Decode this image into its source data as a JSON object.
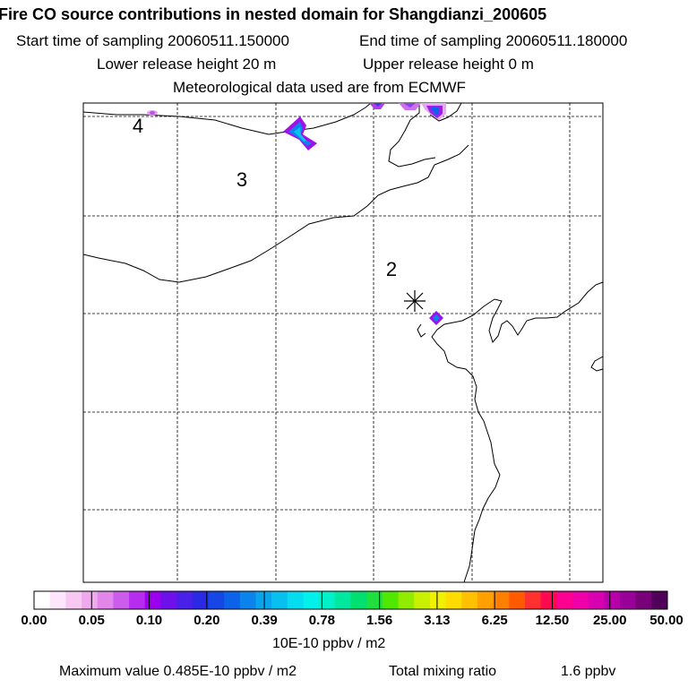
{
  "header": {
    "title": "Fire CO source contributions in nested domain for Shangdianzi_200605",
    "start_label": "Start time of sampling 20060511.150000",
    "end_label": "End time of sampling 20060511.180000",
    "lower_label": "Lower release height   20 m",
    "upper_label": "Upper release height    0 m",
    "met_label": "Meteorological data used are from ECMWF"
  },
  "chart_data": {
    "type": "heatmap",
    "map_labels": [
      "4",
      "3",
      "2"
    ],
    "receptor_marker": "asterisk",
    "colorbar": {
      "tick_labels": [
        "0.00",
        "0.05",
        "0.10",
        "0.20",
        "0.39",
        "0.78",
        "1.56",
        "3.13",
        "6.25",
        "12.50",
        "25.00",
        "50.00"
      ],
      "unit": "10E-10 ppbv / m2",
      "colors": [
        "#ffffff",
        "#fde6fb",
        "#f7c8f2",
        "#f0a8ee",
        "#e286ea",
        "#cc5cec",
        "#b62df0",
        "#9a00ee",
        "#6e10e8",
        "#4a20e8",
        "#2a2ae6",
        "#1646e6",
        "#0c62e8",
        "#0a84ea",
        "#08a4ec",
        "#08c0ee",
        "#06dcf0",
        "#02f0ec",
        "#00f0c8",
        "#00e8a0",
        "#00e070",
        "#20e040",
        "#50e800",
        "#90ec00",
        "#c8f000",
        "#f0f000",
        "#ffdc00",
        "#ffc000",
        "#ffa000",
        "#ff8000",
        "#ff5a00",
        "#ff3030",
        "#ff0a50",
        "#ff0090",
        "#f000a8",
        "#d800b0",
        "#b800a8",
        "#980098",
        "#780078",
        "#500058"
      ]
    },
    "footer": {
      "max_label": "Maximum value  0.485E-10 ppbv / m2",
      "total_label": "Total mixing ratio",
      "total_value": "1.6 ppbv"
    },
    "plumes": [
      {
        "name": "plume-north-1",
        "value": 0.4
      },
      {
        "name": "plume-north-2",
        "value": 0.45
      },
      {
        "name": "plume-north-3",
        "value": 0.485
      },
      {
        "name": "plume-north-4",
        "value": 0.12
      },
      {
        "name": "plume-west",
        "value": 0.06
      },
      {
        "name": "plume-coast",
        "value": 0.3
      }
    ]
  }
}
